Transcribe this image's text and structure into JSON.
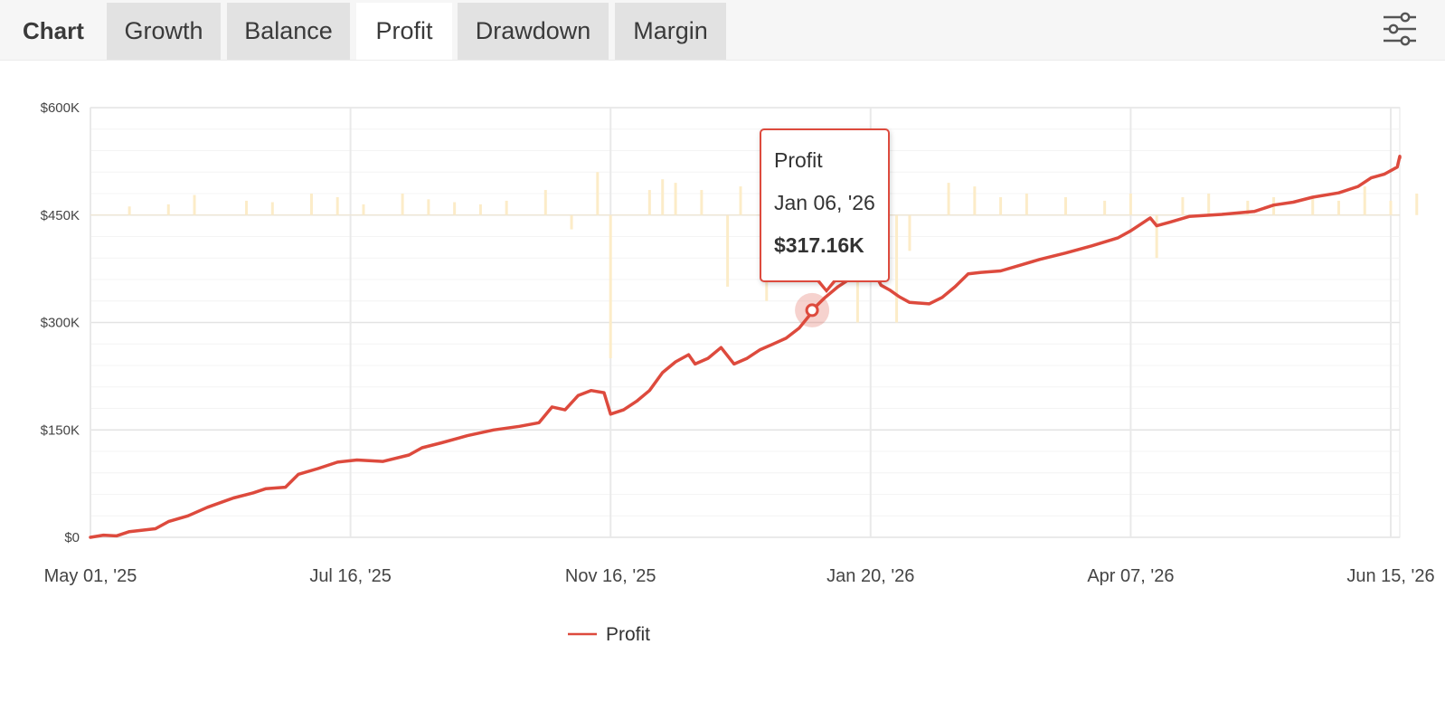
{
  "header": {
    "title": "Chart",
    "tabs": [
      {
        "label": "Growth",
        "active": false
      },
      {
        "label": "Balance",
        "active": false
      },
      {
        "label": "Profit",
        "active": true
      },
      {
        "label": "Drawdown",
        "active": false
      },
      {
        "label": "Margin",
        "active": false
      }
    ],
    "settings_icon": "sliders-icon"
  },
  "tooltip": {
    "series": "Profit",
    "date": "Jan 06, '26",
    "value": "$317.16K"
  },
  "colors": {
    "line": "#dd4a3d",
    "bars": "#fcecc8",
    "tab_active": "#ffffff",
    "tab_inactive": "#e2e2e2"
  },
  "chart_data": {
    "type": "line",
    "title": "",
    "xlabel": "",
    "ylabel": "",
    "ylim": [
      0,
      600000
    ],
    "yticks": [
      "$0",
      "$150K",
      "$300K",
      "$450K",
      "$600K"
    ],
    "xticks": [
      "May 01, '25",
      "Jul 16, '25",
      "Nov 16, '25",
      "Jan 20, '26",
      "Apr 07, '26",
      "Jun 15, '26"
    ],
    "legend": "bottom-center",
    "grid": true,
    "series": [
      {
        "name": "Profit",
        "points": [
          [
            0.0,
            0
          ],
          [
            0.01,
            3000
          ],
          [
            0.02,
            2000
          ],
          [
            0.03,
            8000
          ],
          [
            0.05,
            12000
          ],
          [
            0.06,
            22000
          ],
          [
            0.075,
            30000
          ],
          [
            0.09,
            42000
          ],
          [
            0.11,
            55000
          ],
          [
            0.125,
            62000
          ],
          [
            0.135,
            68000
          ],
          [
            0.15,
            70000
          ],
          [
            0.16,
            88000
          ],
          [
            0.175,
            96000
          ],
          [
            0.19,
            105000
          ],
          [
            0.205,
            108000
          ],
          [
            0.225,
            106000
          ],
          [
            0.245,
            115000
          ],
          [
            0.255,
            125000
          ],
          [
            0.27,
            132000
          ],
          [
            0.29,
            142000
          ],
          [
            0.31,
            150000
          ],
          [
            0.33,
            155000
          ],
          [
            0.345,
            160000
          ],
          [
            0.355,
            182000
          ],
          [
            0.365,
            178000
          ],
          [
            0.375,
            198000
          ],
          [
            0.385,
            205000
          ],
          [
            0.395,
            202000
          ],
          [
            0.4,
            172000
          ],
          [
            0.41,
            178000
          ],
          [
            0.42,
            190000
          ],
          [
            0.43,
            205000
          ],
          [
            0.44,
            230000
          ],
          [
            0.45,
            245000
          ],
          [
            0.46,
            255000
          ],
          [
            0.465,
            242000
          ],
          [
            0.475,
            250000
          ],
          [
            0.485,
            265000
          ],
          [
            0.495,
            242000
          ],
          [
            0.505,
            250000
          ],
          [
            0.515,
            262000
          ],
          [
            0.525,
            270000
          ],
          [
            0.535,
            278000
          ],
          [
            0.545,
            292000
          ],
          [
            0.553,
            310000
          ],
          [
            0.555,
            317160
          ],
          [
            0.565,
            335000
          ],
          [
            0.575,
            350000
          ],
          [
            0.585,
            362000
          ],
          [
            0.595,
            375000
          ],
          [
            0.6,
            380000
          ],
          [
            0.608,
            352000
          ],
          [
            0.615,
            345000
          ],
          [
            0.622,
            336000
          ],
          [
            0.63,
            328000
          ],
          [
            0.645,
            326000
          ],
          [
            0.655,
            335000
          ],
          [
            0.665,
            350000
          ],
          [
            0.675,
            368000
          ],
          [
            0.685,
            370000
          ],
          [
            0.7,
            372000
          ],
          [
            0.715,
            380000
          ],
          [
            0.73,
            388000
          ],
          [
            0.75,
            397000
          ],
          [
            0.77,
            407000
          ],
          [
            0.79,
            418000
          ],
          [
            0.8,
            428000
          ],
          [
            0.81,
            440000
          ],
          [
            0.815,
            446000
          ],
          [
            0.82,
            435000
          ],
          [
            0.83,
            440000
          ],
          [
            0.845,
            448000
          ],
          [
            0.87,
            451000
          ],
          [
            0.895,
            455000
          ],
          [
            0.91,
            464000
          ],
          [
            0.925,
            468000
          ],
          [
            0.94,
            475000
          ],
          [
            0.96,
            481000
          ],
          [
            0.975,
            490000
          ],
          [
            0.985,
            502000
          ],
          [
            0.995,
            507000
          ],
          [
            1.005,
            517000
          ],
          [
            1.015,
            532000
          ],
          [
            1.025,
            531000
          ],
          [
            1.04,
            530000
          ]
        ]
      }
    ],
    "bars_note_values": [
      [
        0.03,
        12000
      ],
      [
        0.06,
        15000
      ],
      [
        0.08,
        28000
      ],
      [
        0.12,
        20000
      ],
      [
        0.14,
        18000
      ],
      [
        0.17,
        30000
      ],
      [
        0.19,
        25000
      ],
      [
        0.21,
        15000
      ],
      [
        0.24,
        30000
      ],
      [
        0.26,
        22000
      ],
      [
        0.28,
        18000
      ],
      [
        0.3,
        15000
      ],
      [
        0.32,
        20000
      ],
      [
        0.35,
        35000
      ],
      [
        0.37,
        -20000
      ],
      [
        0.39,
        60000
      ],
      [
        0.4,
        -200000
      ],
      [
        0.43,
        35000
      ],
      [
        0.44,
        50000
      ],
      [
        0.45,
        45000
      ],
      [
        0.47,
        35000
      ],
      [
        0.49,
        -100000
      ],
      [
        0.5,
        40000
      ],
      [
        0.52,
        -120000
      ],
      [
        0.54,
        45000
      ],
      [
        0.57,
        -60000
      ],
      [
        0.59,
        -150000
      ],
      [
        0.61,
        40000
      ],
      [
        0.62,
        -150000
      ],
      [
        0.63,
        -50000
      ],
      [
        0.66,
        45000
      ],
      [
        0.68,
        40000
      ],
      [
        0.7,
        25000
      ],
      [
        0.72,
        30000
      ],
      [
        0.75,
        25000
      ],
      [
        0.78,
        20000
      ],
      [
        0.8,
        30000
      ],
      [
        0.82,
        -60000
      ],
      [
        0.84,
        25000
      ],
      [
        0.86,
        30000
      ],
      [
        0.89,
        20000
      ],
      [
        0.91,
        25000
      ],
      [
        0.94,
        25000
      ],
      [
        0.96,
        20000
      ],
      [
        0.98,
        40000
      ],
      [
        1.0,
        20000
      ],
      [
        1.02,
        30000
      ]
    ]
  }
}
